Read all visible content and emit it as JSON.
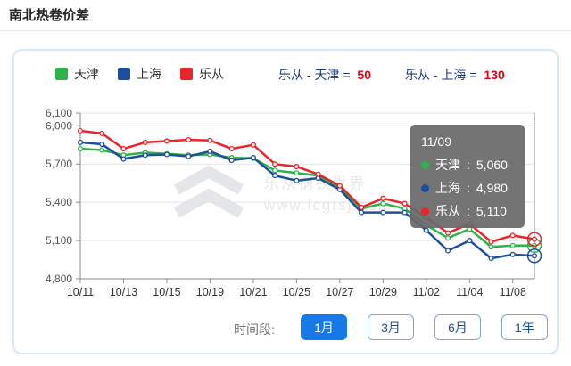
{
  "page": {
    "title": "南北热卷价差"
  },
  "legend": [
    {
      "label": "天津",
      "color": "#2db34a"
    },
    {
      "label": "上海",
      "color": "#1f4e9c"
    },
    {
      "label": "乐从",
      "color": "#e8252c"
    }
  ],
  "spreads": [
    {
      "label": "乐从 - 天津 =",
      "value": "50"
    },
    {
      "label": "乐从 - 上海 =",
      "value": "130"
    }
  ],
  "tooltip": {
    "date": "11/09",
    "rows": [
      {
        "name": "天津",
        "value": "5,060",
        "color": "#2db34a"
      },
      {
        "name": "上海",
        "value": "4,980",
        "color": "#1f4e9c"
      },
      {
        "name": "乐从",
        "value": "5,110",
        "color": "#e8252c"
      }
    ]
  },
  "watermark": {
    "line1": "乐从钢铁世界",
    "line2": "www.lcgtsj.com"
  },
  "periods": {
    "label": "时间段:",
    "options": [
      {
        "label": "1月",
        "active": true
      },
      {
        "label": "3月",
        "active": false
      },
      {
        "label": "6月",
        "active": false
      },
      {
        "label": "1年",
        "active": false
      }
    ]
  },
  "chart_data": {
    "type": "line",
    "x": [
      "10/11",
      "10/12",
      "10/13",
      "10/14",
      "10/15",
      "10/18",
      "10/19",
      "10/20",
      "10/21",
      "10/22",
      "10/25",
      "10/26",
      "10/27",
      "10/28",
      "10/29",
      "11/01",
      "11/02",
      "11/03",
      "11/04",
      "11/05",
      "11/08",
      "11/09"
    ],
    "x_tick_indices": [
      0,
      2,
      4,
      6,
      8,
      10,
      12,
      14,
      16,
      18,
      20
    ],
    "series": [
      {
        "name": "天津",
        "color": "#2db34a",
        "values": [
          5820,
          5810,
          5770,
          5790,
          5780,
          5770,
          5775,
          5750,
          5745,
          5650,
          5630,
          5610,
          5515,
          5350,
          5390,
          5350,
          5220,
          5120,
          5190,
          5050,
          5060,
          5060
        ]
      },
      {
        "name": "上海",
        "color": "#1f4e9c",
        "values": [
          5870,
          5855,
          5740,
          5770,
          5775,
          5760,
          5800,
          5730,
          5750,
          5610,
          5570,
          5590,
          5500,
          5320,
          5320,
          5320,
          5180,
          5020,
          5100,
          4960,
          4990,
          4980
        ]
      },
      {
        "name": "乐从",
        "color": "#e8252c",
        "values": [
          5960,
          5940,
          5820,
          5870,
          5880,
          5890,
          5885,
          5820,
          5850,
          5700,
          5680,
          5620,
          5530,
          5360,
          5430,
          5390,
          5280,
          5160,
          5230,
          5090,
          5140,
          5110
        ]
      }
    ],
    "ylim": [
      4800,
      6100
    ],
    "yticks": [
      4800,
      5100,
      5400,
      5700,
      6000,
      6100
    ],
    "grid": true,
    "legend_position": "top-left",
    "title": "南北热卷价差",
    "xlabel": "",
    "ylabel": ""
  }
}
